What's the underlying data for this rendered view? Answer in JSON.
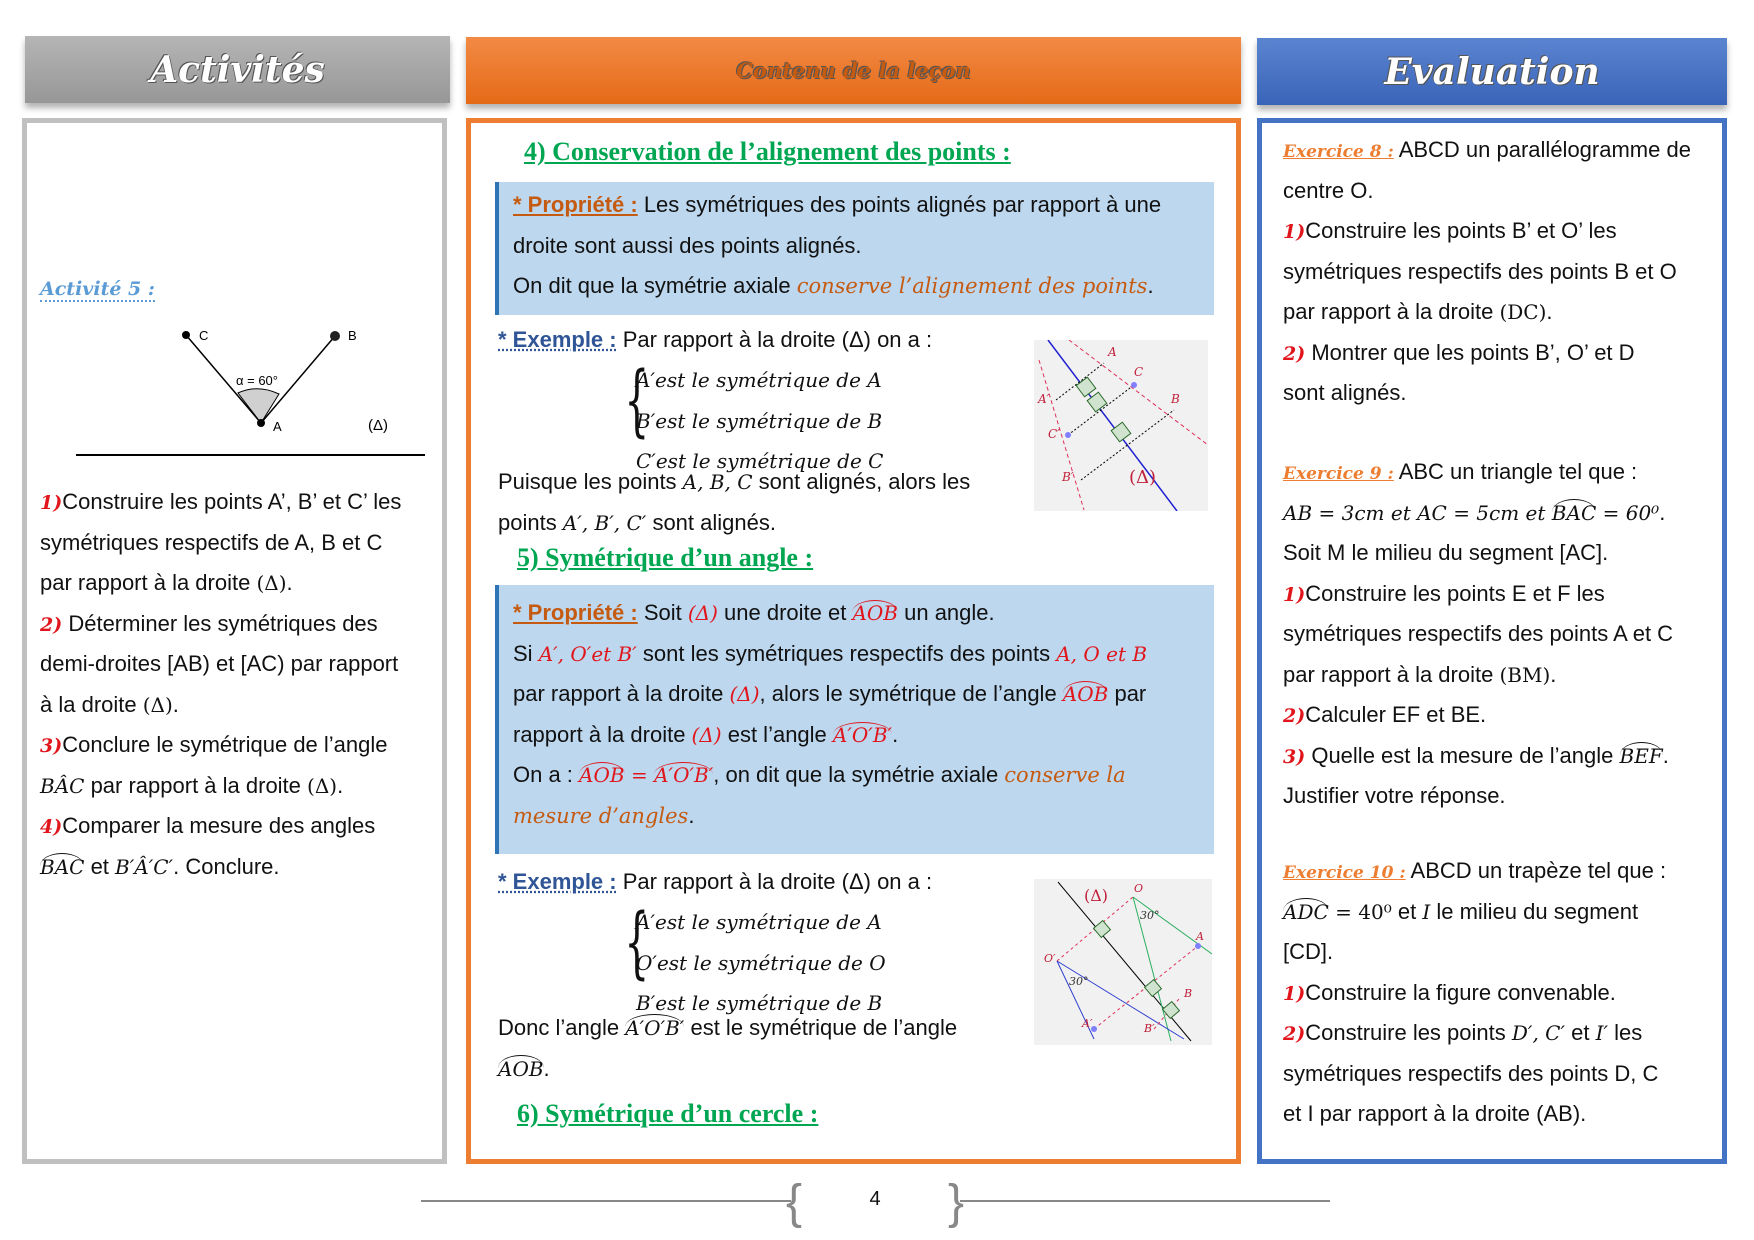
{
  "headers": {
    "activities": "Activités",
    "lesson": "Contenu de la leçon",
    "evaluation": "Evaluation"
  },
  "activities": {
    "title": "Activité 5 :",
    "figure": {
      "angle_label": "α = 60°",
      "point_a": "A",
      "point_b": "B",
      "point_c": "C",
      "line_label": "(Δ)"
    },
    "lines": [
      [
        [
          "num",
          "1)"
        ],
        [
          "n",
          "Construire les points A’,  B’ et  C’ les"
        ]
      ],
      [
        [
          "n",
          "symétriques respectifs de A, B et C"
        ]
      ],
      [
        [
          "n",
          "par rapport à la droite "
        ],
        [
          "up",
          "(Δ)"
        ],
        [
          "n",
          "."
        ]
      ],
      [
        [
          "num",
          "2)"
        ],
        [
          "n",
          " Déterminer les symétriques des"
        ]
      ],
      [
        [
          "n",
          "demi-droites [AB) et [AC) par rapport"
        ]
      ],
      [
        [
          "n",
          "à la droite "
        ],
        [
          "up",
          "(Δ)"
        ],
        [
          "n",
          "."
        ]
      ],
      [
        [
          "num",
          "3)"
        ],
        [
          "n",
          "Conclure le symétrique de l’angle"
        ]
      ],
      [
        [
          "m",
          "BÂC"
        ],
        [
          "n",
          " par rapport à la droite "
        ],
        [
          "up",
          "(Δ)"
        ],
        [
          "n",
          "."
        ]
      ],
      [
        [
          "num",
          "4)"
        ],
        [
          "n",
          "Comparer la mesure des angles"
        ]
      ],
      [
        [
          "arc",
          "BAC"
        ],
        [
          "n",
          " et "
        ],
        [
          "m",
          "B′Â′C′"
        ],
        [
          "n",
          ". Conclure."
        ]
      ]
    ]
  },
  "lesson": {
    "section4": "4) Conservation de l’alignement des points :",
    "prop1": [
      [
        [
          "prop",
          "* Propriété :"
        ],
        [
          "n",
          " Les symétriques des points alignés par rapport à une"
        ]
      ],
      [
        [
          "n",
          "droite sont aussi des points alignés."
        ]
      ],
      [
        [
          "n",
          "On dit que la symétrie axiale "
        ],
        [
          "o",
          "conserve l’alignement des points"
        ],
        [
          "n",
          "."
        ]
      ]
    ],
    "example1": [
      [
        [
          "exm",
          "* Exemple :"
        ],
        [
          "n",
          " Par rapport à la droite (Δ) on a :"
        ]
      ]
    ],
    "system1": [
      [
        [
          "m",
          "A′est le symétrique de A"
        ]
      ],
      [
        [
          "m",
          "B′est le symétrique de B"
        ]
      ],
      [
        [
          "m",
          "C′est le symétrique de C"
        ]
      ]
    ],
    "conclusion1": [
      [
        [
          "n",
          "Puisque les points "
        ],
        [
          "m",
          "A, B, C"
        ],
        [
          "n",
          " sont alignés, alors les"
        ]
      ],
      [
        [
          "n",
          "points "
        ],
        [
          "m",
          "A′, B′, C′"
        ],
        [
          "n",
          " sont alignés."
        ]
      ]
    ],
    "figure1": {
      "labels": [
        "A",
        "C",
        "B",
        "A′",
        "C′",
        "B′",
        "(Δ)"
      ]
    },
    "section5": "5) Symétrique d’un angle :",
    "prop2": [
      [
        [
          "prop",
          "* Propriété :"
        ],
        [
          "n",
          " Soit "
        ],
        [
          "r",
          "(Δ)"
        ],
        [
          "n",
          " une droite et "
        ],
        [
          "arcr",
          "AOB"
        ],
        [
          "n",
          " un angle."
        ]
      ],
      [
        [
          "n",
          "Si "
        ],
        [
          "r",
          "A′, O′et B′"
        ],
        [
          "n",
          " sont les symétriques respectifs des points "
        ],
        [
          "r",
          "A, O et B"
        ]
      ],
      [
        [
          "n",
          "par rapport à la droite "
        ],
        [
          "r",
          "(Δ)"
        ],
        [
          "n",
          ", alors le symétrique de l’angle "
        ],
        [
          "arcr",
          "AOB"
        ],
        [
          "n",
          " par"
        ]
      ],
      [
        [
          "n",
          "rapport à la droite "
        ],
        [
          "r",
          "(Δ)"
        ],
        [
          "n",
          " est l’angle "
        ],
        [
          "arcr",
          "A′O′B′"
        ],
        [
          "n",
          "."
        ]
      ],
      [
        [
          "n",
          "On a : "
        ],
        [
          "arcr",
          "AOB"
        ],
        [
          "r",
          " = "
        ],
        [
          "arcr",
          "A′O′B′"
        ],
        [
          "n",
          ", on dit que la symétrie axiale "
        ],
        [
          "o",
          "conserve la"
        ]
      ],
      [
        [
          "o",
          "mesure d’angles"
        ],
        [
          "n",
          "."
        ]
      ]
    ],
    "example2": [
      [
        [
          "exm",
          "* Exemple :"
        ],
        [
          "n",
          " Par rapport à la droite (Δ) on a :"
        ]
      ]
    ],
    "system2": [
      [
        [
          "m",
          "A′est le symétrique de A"
        ]
      ],
      [
        [
          "m",
          "O′est le symétrique de O"
        ]
      ],
      [
        [
          "m",
          "B′est le symétrique de B"
        ]
      ]
    ],
    "conclusion2": [
      [
        [
          "n",
          "Donc l’angle "
        ],
        [
          "arc",
          "A′O′B′"
        ],
        [
          "n",
          " est le symétrique de l’angle"
        ]
      ],
      [
        [
          "arc",
          "AOB"
        ],
        [
          "n",
          "."
        ]
      ]
    ],
    "figure2": {
      "labels": [
        "(Δ)",
        "O",
        "30°",
        "A",
        "O′",
        "30°",
        "B",
        "A′",
        "B′"
      ]
    },
    "section6": "6) Symétrique d’un cercle :"
  },
  "evaluation": {
    "ex8": [
      [
        [
          "ex",
          "Exercice 8 :"
        ],
        [
          "n",
          " ABCD un parallélogramme de"
        ]
      ],
      [
        [
          "n",
          "centre O."
        ]
      ],
      [
        [
          "num",
          "1)"
        ],
        [
          "n",
          "Construire les points B’ et O’ les"
        ]
      ],
      [
        [
          "n",
          "symétriques respectifs des points B et O"
        ]
      ],
      [
        [
          "n",
          "par rapport à la droite "
        ],
        [
          "up",
          "(DC)"
        ],
        [
          "n",
          "."
        ]
      ],
      [
        [
          "num",
          "2)"
        ],
        [
          "n",
          "  Montrer que les points B’, O’ et D"
        ]
      ],
      [
        [
          "n",
          "sont alignés."
        ]
      ]
    ],
    "ex9": [
      [
        [
          "ex",
          "Exercice 9 :"
        ],
        [
          "n",
          " ABC un triangle tel que :"
        ]
      ],
      [
        [
          "m",
          "AB = 3cm et AC = 5cm et "
        ],
        [
          "arc",
          "BAC"
        ],
        [
          "m",
          " = 60⁰"
        ],
        [
          "n",
          "."
        ]
      ],
      [
        [
          "n",
          "Soit M le milieu du segment [AC]."
        ]
      ],
      [
        [
          "num",
          "1)"
        ],
        [
          "n",
          "Construire les points E et F les"
        ]
      ],
      [
        [
          "n",
          "symétriques respectifs des points A et C"
        ]
      ],
      [
        [
          "n",
          "par rapport à la droite "
        ],
        [
          "up",
          "(BM)"
        ],
        [
          "n",
          "."
        ]
      ],
      [
        [
          "num",
          "2)"
        ],
        [
          "n",
          "Calculer EF et BE."
        ]
      ],
      [
        [
          "num",
          "3)"
        ],
        [
          "n",
          " Quelle est la mesure de l’angle "
        ],
        [
          "arc",
          "BEF"
        ],
        [
          "n",
          "."
        ]
      ],
      [
        [
          "n",
          "Justifier votre réponse."
        ]
      ]
    ],
    "ex10": [
      [
        [
          "ex",
          "Exercice 10 :"
        ],
        [
          "n",
          " ABCD un trapèze tel que :"
        ]
      ],
      [
        [
          "arc",
          "ADC"
        ],
        [
          "up",
          " = 40⁰"
        ],
        [
          "n",
          " et "
        ],
        [
          "m",
          "I"
        ],
        [
          "n",
          " le milieu du segment"
        ]
      ],
      [
        [
          "n",
          "[CD]."
        ]
      ],
      [
        [
          "num",
          "1)"
        ],
        [
          "n",
          "Construire la figure convenable."
        ]
      ],
      [
        [
          "num",
          "2)"
        ],
        [
          "n",
          "Construire les points "
        ],
        [
          "m",
          "D′, C′"
        ],
        [
          "n",
          " et "
        ],
        [
          "m",
          "I′"
        ],
        [
          "n",
          " les"
        ]
      ],
      [
        [
          "n",
          "symétriques respectifs des points D, C"
        ]
      ],
      [
        [
          "n",
          "et I par rapport à la droite (AB)."
        ]
      ]
    ]
  },
  "footer": {
    "page_number": "4"
  }
}
